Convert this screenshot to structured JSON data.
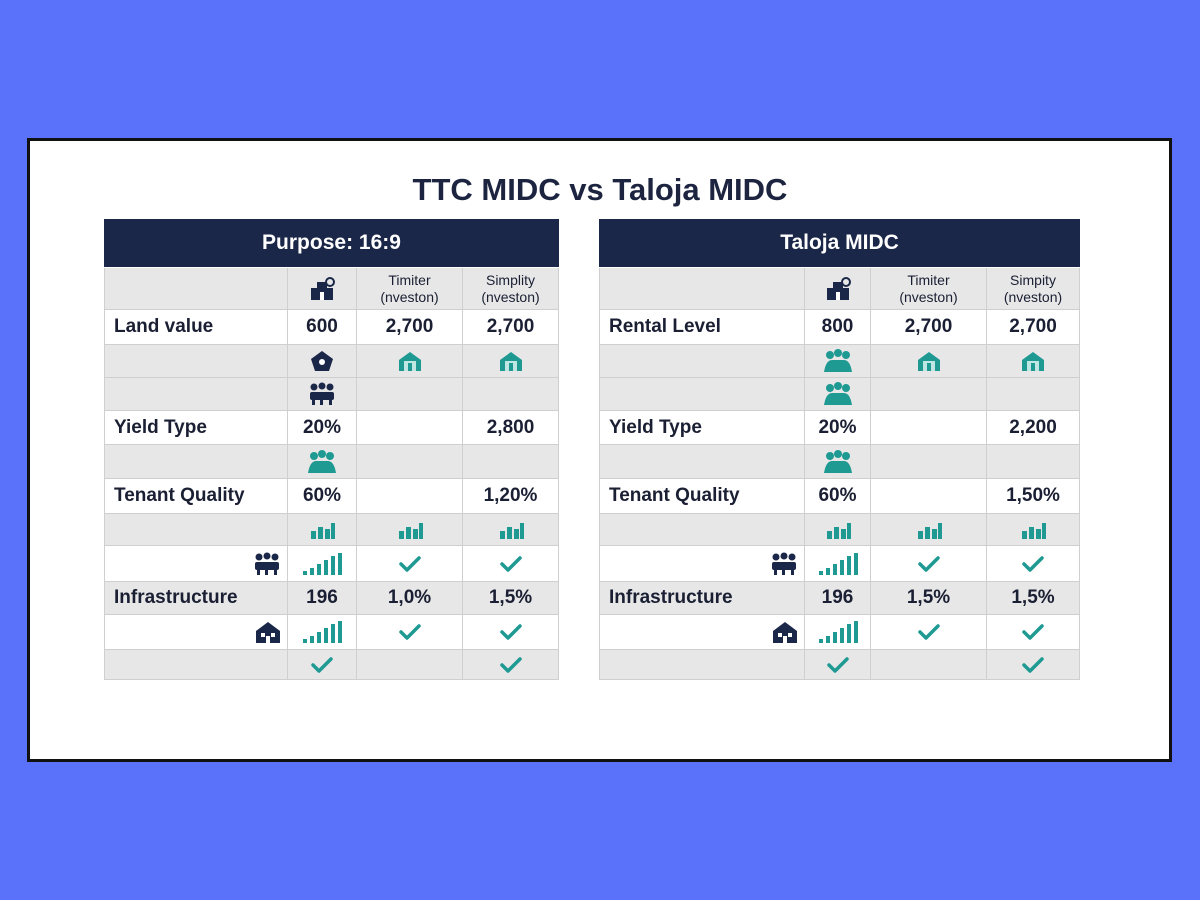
{
  "title": "TTC MIDC vs Taloja MIDC",
  "tables": [
    {
      "header": "Purpose: 16:9",
      "column_headers": [
        "Timiter (nveston)",
        "Simplity (nveston)"
      ],
      "rows": [
        [
          "Land value",
          "600",
          "2,700",
          "2,700"
        ],
        [
          "Yield Type",
          "20%",
          null,
          "2,800"
        ],
        [
          "Tenant Quality",
          "60%",
          null,
          "1,20%"
        ],
        [
          "Infrastructure",
          "196",
          "1,0%",
          "1,5%"
        ]
      ]
    },
    {
      "header": "Taloja MIDC",
      "column_headers": [
        "Timiter (nveston)",
        "Simpity (nveston)"
      ],
      "rows": [
        [
          "Rental Level",
          "800",
          "2,700",
          "2,700"
        ],
        [
          "Yield Type",
          "20%",
          null,
          "2,200"
        ],
        [
          "Tenant Quality",
          "60%",
          null,
          "1,50%"
        ],
        [
          "Infrastructure",
          "196",
          "1,5%",
          "1,5%"
        ]
      ]
    }
  ]
}
